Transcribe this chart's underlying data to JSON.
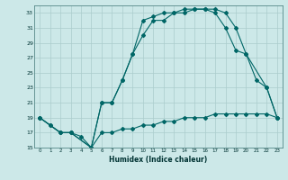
{
  "xlabel": "Humidex (Indice chaleur)",
  "background_color": "#cce8e8",
  "grid_color": "#aacccc",
  "line_color": "#006666",
  "xlim": [
    -0.5,
    23.5
  ],
  "ylim": [
    15,
    34
  ],
  "yticks": [
    15,
    17,
    19,
    21,
    23,
    25,
    27,
    29,
    31,
    33
  ],
  "xticks": [
    0,
    1,
    2,
    3,
    4,
    5,
    6,
    7,
    8,
    9,
    10,
    11,
    12,
    13,
    14,
    15,
    16,
    17,
    18,
    19,
    20,
    21,
    22,
    23
  ],
  "line1_x": [
    0,
    1,
    2,
    3,
    4,
    5,
    6,
    7,
    8,
    9,
    10,
    11,
    12,
    13,
    14,
    15,
    16,
    17,
    18,
    19,
    20,
    21,
    22,
    23
  ],
  "line1_y": [
    19,
    18,
    17,
    17,
    16.5,
    15,
    17,
    17,
    17.5,
    17.5,
    18,
    18,
    18.5,
    18.5,
    19,
    19,
    19,
    19.5,
    19.5,
    19.5,
    19.5,
    19.5,
    19.5,
    19
  ],
  "line2_x": [
    0,
    1,
    2,
    3,
    5,
    6,
    7,
    8,
    9,
    10,
    11,
    12,
    13,
    14,
    15,
    16,
    17,
    18,
    19,
    20,
    21,
    22,
    23
  ],
  "line2_y": [
    19,
    18,
    17,
    17,
    15,
    21,
    21,
    24,
    27.5,
    32,
    32.5,
    33,
    33,
    33.5,
    33.5,
    33.5,
    33,
    31,
    28,
    27.5,
    24,
    23,
    19
  ],
  "line3_x": [
    0,
    2,
    3,
    5,
    6,
    7,
    8,
    9,
    10,
    11,
    12,
    13,
    14,
    15,
    16,
    17,
    18,
    19,
    20,
    22,
    23
  ],
  "line3_y": [
    19,
    17,
    17,
    15,
    21,
    21,
    24,
    27.5,
    30,
    32,
    32,
    33,
    33,
    33.5,
    33.5,
    33.5,
    33,
    31,
    27.5,
    23,
    19
  ]
}
